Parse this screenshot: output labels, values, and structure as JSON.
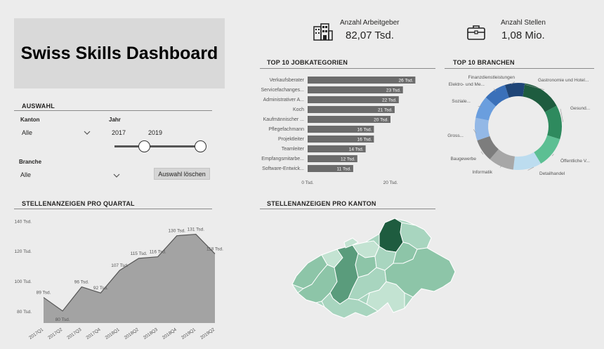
{
  "title": "Swiss Skills Dashboard",
  "kpis": {
    "employers": {
      "label": "Anzahl Arbeitgeber",
      "value": "82,07 Tsd.",
      "icon": "building-icon"
    },
    "jobs": {
      "label": "Anzahl Stellen",
      "value": "1,08 Mio.",
      "icon": "briefcase-icon"
    }
  },
  "filters": {
    "section_title": "AUSWAHL",
    "kanton_label": "Kanton",
    "kanton_value": "Alle",
    "jahr_label": "Jahr",
    "jahr_from": "2017",
    "jahr_to": "2019",
    "branche_label": "Branche",
    "branche_value": "Alle",
    "clear_button": "Auswahl löschen"
  },
  "chart_data": [
    {
      "type": "bar",
      "orientation": "horizontal",
      "title": "TOP 10 JOBKATEGORIEN",
      "categories": [
        "Verkaufsberater",
        "Servicefachanges...",
        "Administrativer A...",
        "Koch",
        "Kaufmännischer ...",
        "Pflegefachmann",
        "Projektleiter",
        "Teamleiter",
        "Empfangsmitarbe...",
        "Software-Entwick..."
      ],
      "values": [
        26,
        23,
        22,
        21,
        20,
        16,
        16,
        14,
        12,
        11
      ],
      "value_labels": [
        "26 Tsd.",
        "23 Tsd.",
        "22 Tsd.",
        "21 Tsd.",
        "20 Tsd.",
        "16 Tsd.",
        "16 Tsd.",
        "14 Tsd.",
        "12 Tsd.",
        "11 Tsd."
      ],
      "xticks": [
        "0 Tsd.",
        "20 Tsd."
      ],
      "xlim": [
        0,
        30
      ],
      "color": "#6b6b6b"
    },
    {
      "type": "pie",
      "donut": true,
      "title": "TOP 10 BRANCHEN",
      "labels": [
        "Gastronomie und Hotel...",
        "Gesund...",
        "Öffentliche V...",
        "Detailhandel",
        "Informatik",
        "Baugewerbe",
        "Gross...",
        "Soziales...",
        "Elektro- und Me...",
        "Finanzdienstleistungen"
      ],
      "display_labels": [
        "Gastronomie und Hotel...",
        "Gesund...",
        "Öffentliche V...",
        "Detailhandel",
        "Informatik",
        "Baugewerbe",
        "Gross...",
        "Soziale...",
        "Elektro- und Me...",
        "Finanzdienstleistungen"
      ],
      "values": [
        14,
        12,
        11,
        10,
        9,
        8,
        8,
        8,
        8,
        7
      ],
      "colors": [
        "#1e5c3f",
        "#2e8a5e",
        "#5cbf93",
        "#bcdcef",
        "#a7a7a7",
        "#7d7d7d",
        "#93b8e6",
        "#6a9ede",
        "#3a70b9",
        "#1f4577"
      ]
    },
    {
      "type": "area",
      "title": "STELLENANZEIGEN PRO QUARTAL",
      "categories": [
        "2017Q1",
        "2017Q2",
        "2017Q3",
        "2017Q4",
        "2018Q1",
        "2018Q2",
        "2018Q3",
        "2018Q4",
        "2019Q1",
        "2019Q2"
      ],
      "values": [
        89,
        80,
        96,
        92,
        107,
        115,
        116,
        130,
        131,
        118
      ],
      "value_labels": [
        "89 Tsd.",
        "80 Tsd.",
        "96 Tsd.",
        "92 Tsd.",
        "107 Tsd.",
        "115 Tsd.",
        "116 Tsd.",
        "130 Tsd.",
        "131 Tsd.",
        "118 Tsd."
      ],
      "yticks": [
        "80 Tsd.",
        "100 Tsd.",
        "120 Tsd.",
        "140 Tsd."
      ],
      "ytick_values": [
        80,
        100,
        120,
        140
      ],
      "ylim": [
        72,
        142
      ],
      "color": "#a3a3a3"
    }
  ],
  "map": {
    "title": "STELLENANZEIGEN PRO KANTON",
    "colors": [
      "#1e5c3f",
      "#5a9c7c",
      "#8dc5a8",
      "#a8d5bf",
      "#c3e3d2"
    ]
  }
}
